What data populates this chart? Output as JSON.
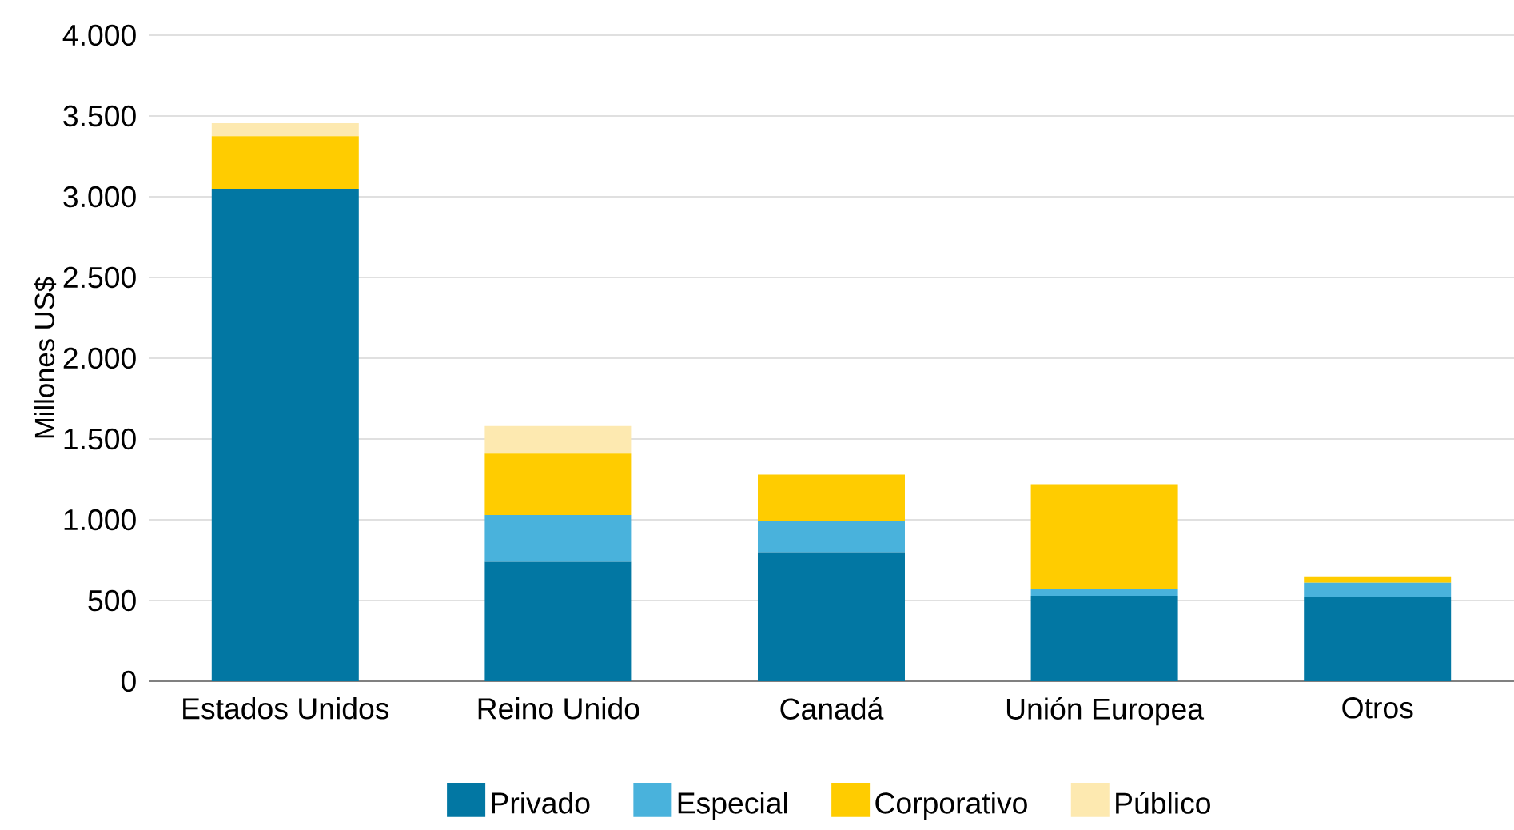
{
  "chart_data": {
    "type": "bar",
    "stacked": true,
    "ylabel": "Millones US$",
    "categories": [
      "Estados Unidos",
      "Reino Unido",
      "Canadá",
      "Unión Europea",
      "Otros"
    ],
    "series": [
      {
        "name": "Privado",
        "color": "#0277a3",
        "values": [
          3050,
          740,
          800,
          530,
          520
        ]
      },
      {
        "name": "Especial",
        "color": "#49b2dc",
        "values": [
          0,
          290,
          190,
          40,
          90
        ]
      },
      {
        "name": "Corporativo",
        "color": "#ffcc00",
        "values": [
          325,
          380,
          290,
          650,
          40
        ]
      },
      {
        "name": "Público",
        "color": "#fde9b0",
        "values": [
          80,
          170,
          0,
          0,
          0
        ]
      }
    ],
    "ylim": [
      0,
      4000
    ],
    "yticks": [
      {
        "value": 0,
        "label": "0"
      },
      {
        "value": 500,
        "label": "500"
      },
      {
        "value": 1000,
        "label": "1.000"
      },
      {
        "value": 1500,
        "label": "1.500"
      },
      {
        "value": 2000,
        "label": "2.000"
      },
      {
        "value": 2500,
        "label": "2.500"
      },
      {
        "value": 3000,
        "label": "3.000"
      },
      {
        "value": 3500,
        "label": "3.500"
      },
      {
        "value": 4000,
        "label": "4.000"
      }
    ],
    "grid": "y",
    "legend": "bottom"
  }
}
